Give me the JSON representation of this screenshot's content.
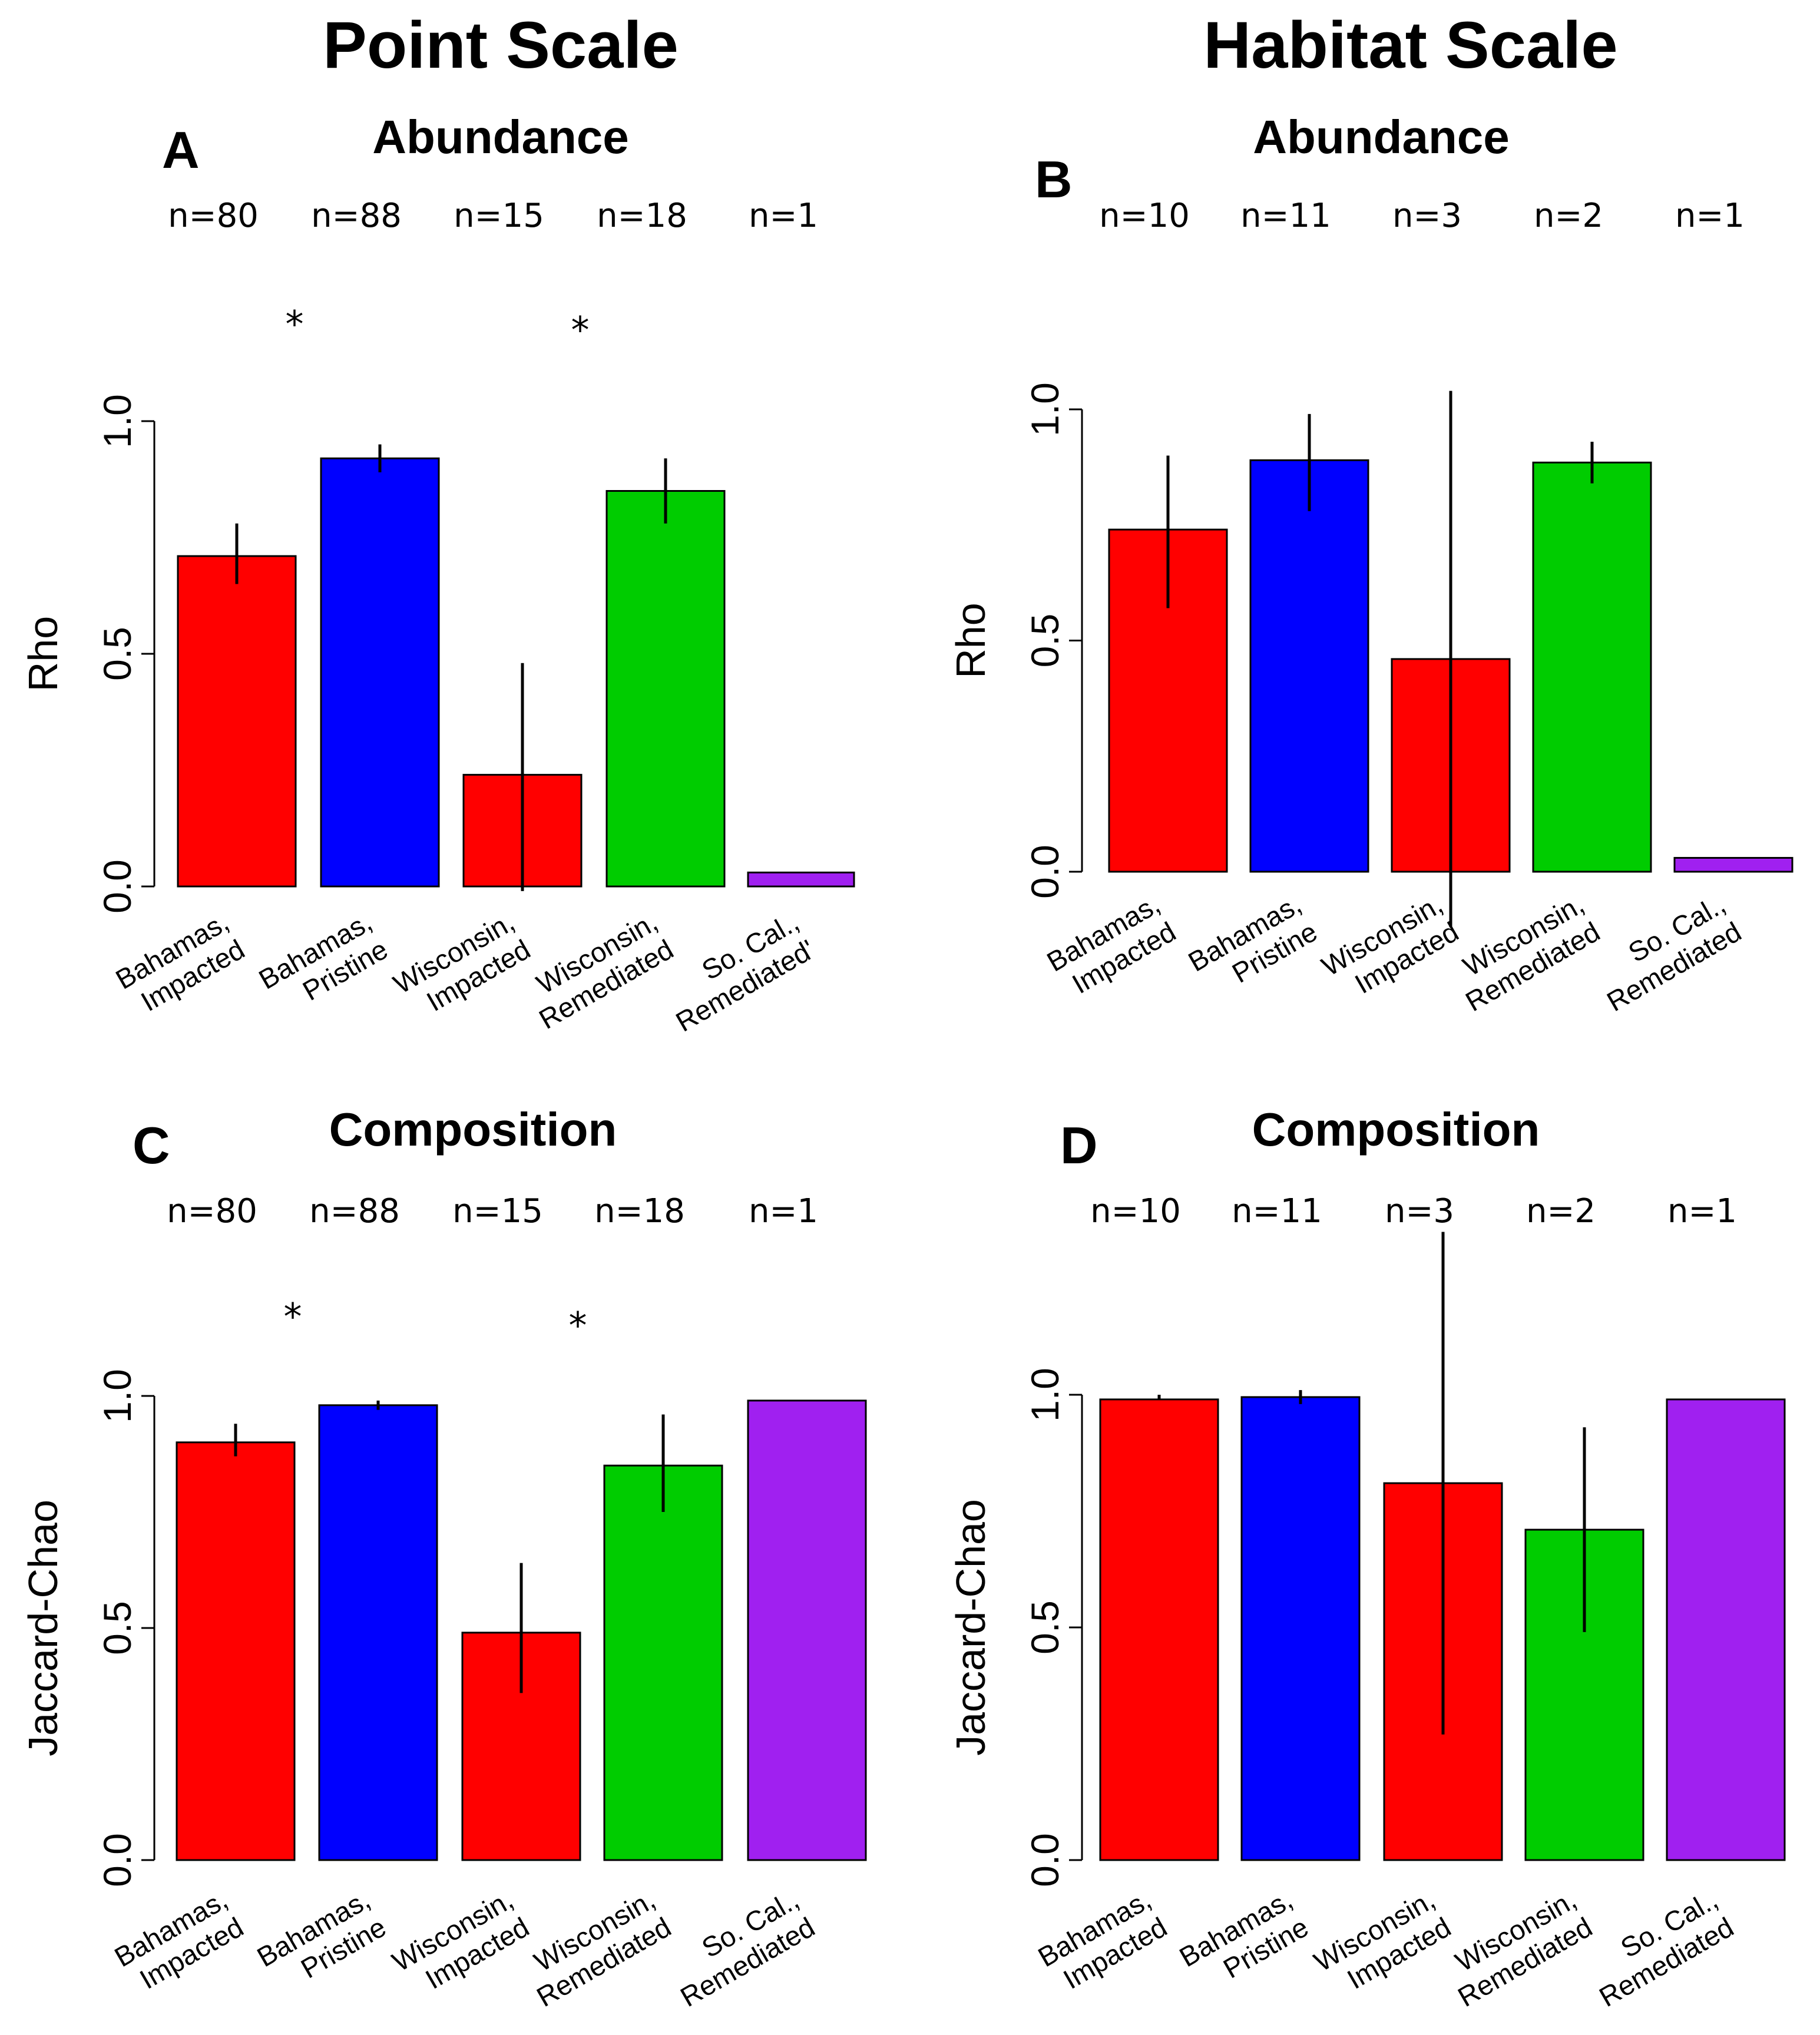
{
  "headings": {
    "left": "Point Scale",
    "right": "Habitat Scale"
  },
  "colors": {
    "impacted": "#ff0000",
    "pristine": "#0000ff",
    "remediated": "#00cc00",
    "socal": "#a020f0"
  },
  "chart_data": [
    {
      "letter": "A",
      "title": "Abundance",
      "type": "bar",
      "ylabel": "Rho",
      "ylim": [
        0,
        1
      ],
      "yticks": [
        "0.0",
        "0.5",
        "1.0"
      ],
      "categories": [
        [
          "Bahamas,",
          "Impacted"
        ],
        [
          "Bahamas,",
          "Pristine"
        ],
        [
          "Wisconsin,",
          "Impacted"
        ],
        [
          "Wisconsin,",
          "Remediated"
        ],
        [
          "So. Cal.,",
          "Remediated'"
        ]
      ],
      "values": [
        0.71,
        0.92,
        0.24,
        0.85,
        0.03
      ],
      "err_low": [
        0.65,
        0.89,
        -0.01,
        0.78,
        0.03
      ],
      "err_high": [
        0.78,
        0.95,
        0.48,
        0.92,
        0.03
      ],
      "colors": [
        "#ff0000",
        "#0000ff",
        "#ff0000",
        "#00cc00",
        "#a020f0"
      ],
      "n_labels": [
        "n=80",
        "n=88",
        "n=15",
        "n=18",
        "n=1"
      ],
      "stars": [
        "",
        "*",
        "",
        "*",
        ""
      ]
    },
    {
      "letter": "B",
      "title": "Abundance",
      "type": "bar",
      "ylabel": "Rho",
      "ylim": [
        0,
        1
      ],
      "yticks": [
        "0.0",
        "0.5",
        "1.0"
      ],
      "categories": [
        [
          "Bahamas,",
          "Impacted"
        ],
        [
          "Bahamas,",
          "Pristine"
        ],
        [
          "Wisconsin,",
          "Impacted"
        ],
        [
          "Wisconsin,",
          "Remediated"
        ],
        [
          "So. Cal.,",
          "Remediated"
        ]
      ],
      "values": [
        0.74,
        0.89,
        0.46,
        0.885,
        0.03
      ],
      "err_low": [
        0.57,
        0.78,
        -0.12,
        0.84,
        0.03
      ],
      "err_high": [
        0.9,
        0.99,
        1.04,
        0.93,
        0.03
      ],
      "colors": [
        "#ff0000",
        "#0000ff",
        "#ff0000",
        "#00cc00",
        "#a020f0"
      ],
      "n_labels": [
        "n=10",
        "n=11",
        "n=3",
        "n=2",
        "n=1"
      ],
      "stars": [
        "",
        "",
        "",
        "",
        ""
      ]
    },
    {
      "letter": "C",
      "title": "Composition",
      "type": "bar",
      "ylabel": "Jaccard-Chao",
      "ylim": [
        0,
        1
      ],
      "yticks": [
        "0.0",
        "0.5",
        "1.0"
      ],
      "categories": [
        [
          "Bahamas,",
          "Impacted"
        ],
        [
          "Bahamas,",
          "Pristine"
        ],
        [
          "Wisconsin,",
          "Impacted"
        ],
        [
          "Wisconsin,",
          "Remediated"
        ],
        [
          "So. Cal.,",
          "Remediated"
        ]
      ],
      "values": [
        0.9,
        0.98,
        0.49,
        0.85,
        0.99
      ],
      "err_low": [
        0.87,
        0.97,
        0.36,
        0.75,
        0.99
      ],
      "err_high": [
        0.94,
        0.99,
        0.64,
        0.96,
        0.99
      ],
      "colors": [
        "#ff0000",
        "#0000ff",
        "#ff0000",
        "#00cc00",
        "#a020f0"
      ],
      "n_labels": [
        "n=80",
        "n=88",
        "n=15",
        "n=18",
        "n=1"
      ],
      "stars": [
        "",
        "*",
        "",
        "*",
        ""
      ]
    },
    {
      "letter": "D",
      "title": "Composition",
      "type": "bar",
      "ylabel": "Jaccard-Chao",
      "ylim": [
        0,
        1
      ],
      "yticks": [
        "0.0",
        "0.5",
        "1.0"
      ],
      "categories": [
        [
          "Bahamas,",
          "Impacted"
        ],
        [
          "Bahamas,",
          "Pristine"
        ],
        [
          "Wisconsin,",
          "Impacted"
        ],
        [
          "Wisconsin,",
          "Remediated"
        ],
        [
          "So. Cal.,",
          "Remediated"
        ]
      ],
      "values": [
        0.99,
        0.995,
        0.81,
        0.71,
        0.99
      ],
      "err_low": [
        0.99,
        0.98,
        0.27,
        0.49,
        0.99
      ],
      "err_high": [
        1.0,
        1.01,
        1.35,
        0.93,
        0.99
      ],
      "colors": [
        "#ff0000",
        "#0000ff",
        "#ff0000",
        "#00cc00",
        "#a020f0"
      ],
      "n_labels": [
        "n=10",
        "n=11",
        "n=3",
        "n=2",
        "n=1"
      ],
      "stars": [
        "",
        "",
        "",
        "",
        ""
      ]
    }
  ]
}
